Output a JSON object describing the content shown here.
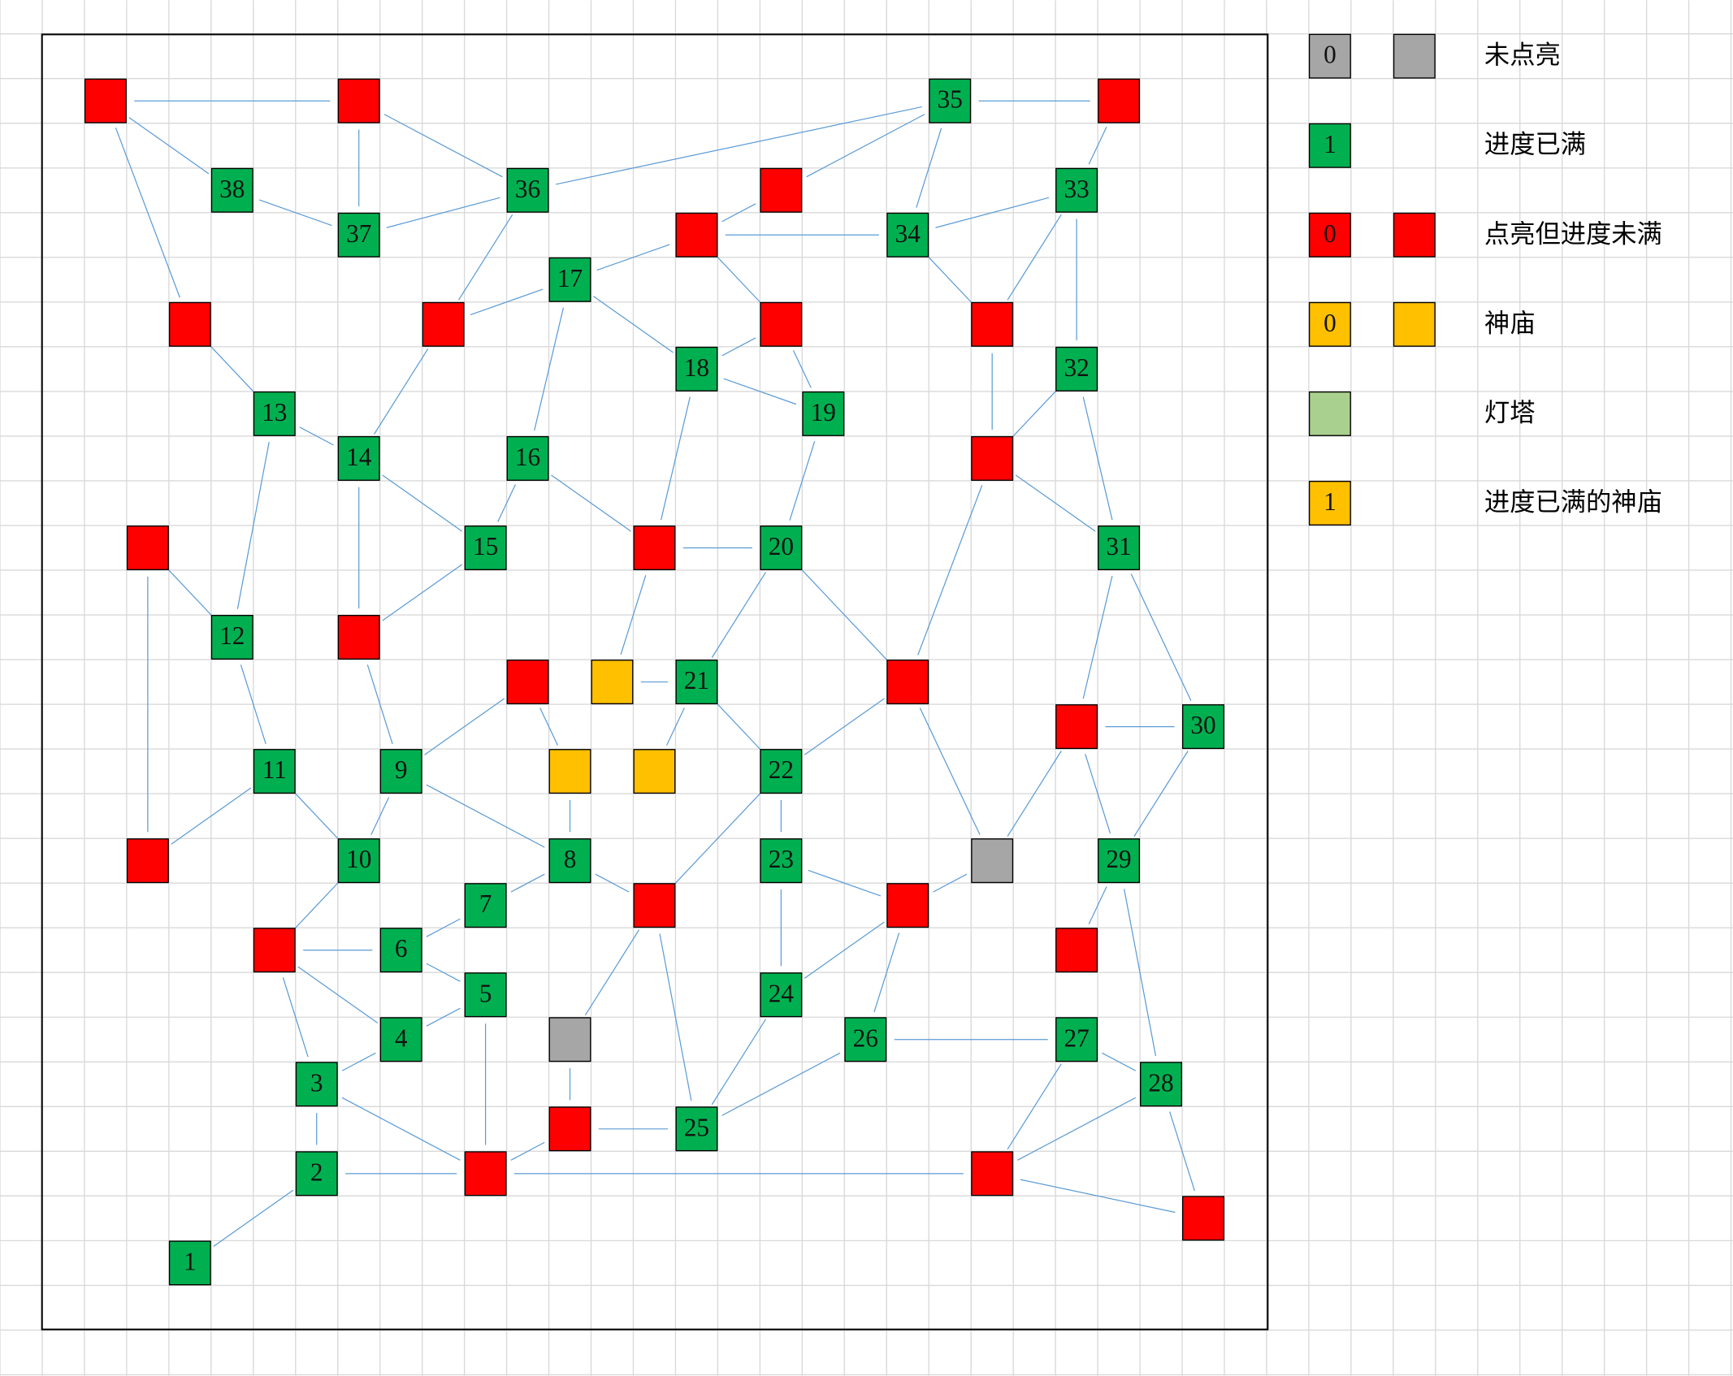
{
  "nodes": [
    "1",
    "2",
    "3",
    "4",
    "5",
    "6",
    "7",
    "8",
    "9",
    "10",
    "11",
    "12",
    "13",
    "14",
    "15",
    "16",
    "17",
    "18",
    "19",
    "20",
    "21",
    "22",
    "23",
    "24",
    "25",
    "26",
    "27",
    "28",
    "29",
    "30",
    "31",
    "32",
    "33",
    "34",
    "35",
    "36",
    "37",
    "38"
  ],
  "legend": [
    {
      "sample": "0",
      "label": "未点亮"
    },
    {
      "sample": "1",
      "label": "进度已满"
    },
    {
      "sample": "0",
      "label": "点亮但进度未满"
    },
    {
      "sample": "0",
      "label": "神庙"
    },
    {
      "label": "灯塔"
    },
    {
      "sample": "1",
      "label": "进度已满的神庙"
    }
  ]
}
